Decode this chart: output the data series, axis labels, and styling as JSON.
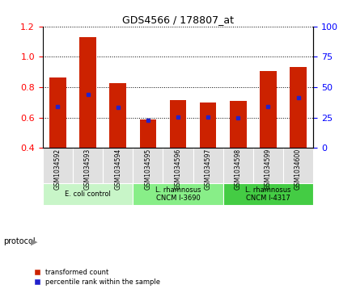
{
  "title": "GDS4566 / 178807_at",
  "samples": [
    "GSM1034592",
    "GSM1034593",
    "GSM1034594",
    "GSM1034595",
    "GSM1034596",
    "GSM1034597",
    "GSM1034598",
    "GSM1034599",
    "GSM1034600"
  ],
  "transformed_count": [
    0.865,
    1.13,
    0.825,
    0.59,
    0.715,
    0.7,
    0.71,
    0.905,
    0.935
  ],
  "percentile_rank": [
    0.675,
    0.755,
    0.665,
    0.585,
    0.605,
    0.605,
    0.6,
    0.675,
    0.73
  ],
  "bar_bottom": 0.4,
  "ylim": [
    0.4,
    1.2
  ],
  "y2lim": [
    0,
    100
  ],
  "yticks": [
    0.4,
    0.6,
    0.8,
    1.0,
    1.2
  ],
  "y2ticks": [
    0,
    25,
    50,
    75,
    100
  ],
  "protocols": [
    {
      "label": "E. coli control",
      "samples": [
        0,
        1,
        2
      ],
      "color": "#c8f5c8"
    },
    {
      "label": "L. rhamnosus\nCNCM I-3690",
      "samples": [
        3,
        4,
        5
      ],
      "color": "#88ee88"
    },
    {
      "label": "L. rhamnosus\nCNCM I-4317",
      "samples": [
        6,
        7,
        8
      ],
      "color": "#44cc44"
    }
  ],
  "proto_colors": [
    "#c8f5c8",
    "#88ee88",
    "#44cc44"
  ],
  "bar_color": "#cc2200",
  "percentile_color": "#2222cc",
  "bar_width": 0.55,
  "bg_color": "#e0e0e0",
  "protocol_label": "protocol",
  "legend_items": [
    {
      "label": "transformed count",
      "color": "#cc2200"
    },
    {
      "label": "percentile rank within the sample",
      "color": "#2222cc"
    }
  ]
}
